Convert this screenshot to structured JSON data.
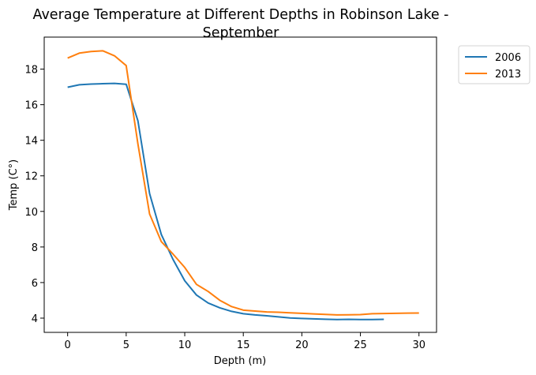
{
  "chart_data": {
    "type": "line",
    "title_lines": [
      "Average Temperature at Different Depths in Robinson Lake -",
      "September"
    ],
    "xlabel": "Depth (m)",
    "ylabel": "Temp (C°)",
    "xlim": [
      -2,
      31.5
    ],
    "ylim": [
      3.2,
      19.8
    ],
    "xticks": [
      0,
      5,
      10,
      15,
      20,
      25,
      30
    ],
    "yticks": [
      4,
      6,
      8,
      10,
      12,
      14,
      16,
      18
    ],
    "legend_position": "outside-top-right",
    "series": [
      {
        "name": "2006",
        "color": "#1f77b4",
        "x": [
          0,
          1,
          2,
          3,
          4,
          5,
          6,
          7,
          8,
          9,
          10,
          11,
          12,
          13,
          14,
          15,
          16,
          17,
          18,
          19,
          20,
          21,
          22,
          23,
          24,
          25,
          26,
          27
        ],
        "y": [
          16.98,
          17.12,
          17.16,
          17.18,
          17.2,
          17.15,
          15.1,
          11.0,
          8.7,
          7.3,
          6.1,
          5.3,
          4.85,
          4.58,
          4.38,
          4.25,
          4.18,
          4.13,
          4.07,
          4.01,
          3.98,
          3.96,
          3.94,
          3.92,
          3.93,
          3.92,
          3.92,
          3.93
        ]
      },
      {
        "name": "2013",
        "color": "#ff7f0e",
        "x": [
          0,
          1,
          2,
          3,
          4,
          5,
          6,
          7,
          8,
          9,
          10,
          11,
          12,
          13,
          14,
          15,
          16,
          17,
          18,
          19,
          20,
          21,
          22,
          23,
          24,
          25,
          26,
          27,
          28,
          29,
          30
        ],
        "y": [
          18.62,
          18.9,
          18.99,
          19.03,
          18.75,
          18.2,
          13.8,
          9.85,
          8.3,
          7.6,
          6.85,
          5.9,
          5.5,
          5.0,
          4.65,
          4.45,
          4.4,
          4.35,
          4.33,
          4.3,
          4.27,
          4.24,
          4.21,
          4.18,
          4.19,
          4.2,
          4.25,
          4.26,
          4.27,
          4.28,
          4.29
        ]
      }
    ]
  }
}
